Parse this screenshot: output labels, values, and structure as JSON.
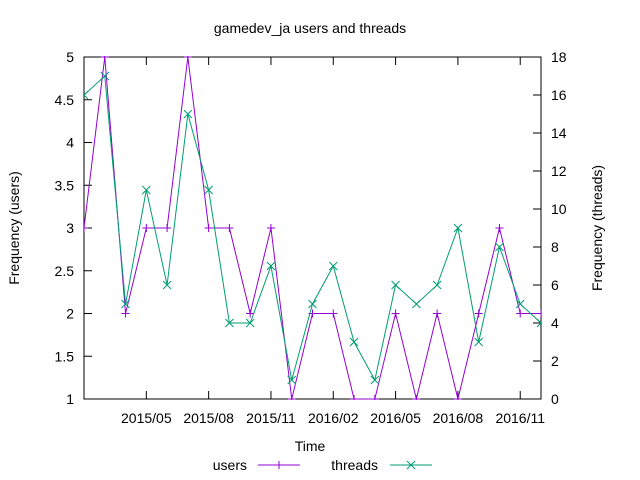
{
  "chart_data": {
    "type": "line",
    "title": "gamedev_ja users and threads",
    "xlabel": "Time",
    "ylabel_left": "Frequency (users)",
    "ylabel_right": "Frequency (threads)",
    "x_tick_labels": [
      "2015/05",
      "2015/08",
      "2015/11",
      "2016/02",
      "2016/05",
      "2016/08",
      "2016/11"
    ],
    "y_left_ticks": [
      "1",
      "1.5",
      "2",
      "2.5",
      "3",
      "3.5",
      "4",
      "4.5",
      "5"
    ],
    "y_right_ticks": [
      "0",
      "2",
      "4",
      "6",
      "8",
      "10",
      "12",
      "14",
      "16",
      "18"
    ],
    "ylim_left": [
      1,
      5
    ],
    "ylim_right": [
      0,
      18
    ],
    "x": [
      "2015-02",
      "2015-03",
      "2015-04",
      "2015-05",
      "2015-06",
      "2015-07",
      "2015-08",
      "2015-09",
      "2015-10",
      "2015-11",
      "2015-12",
      "2016-01",
      "2016-02",
      "2016-03",
      "2016-04",
      "2016-05",
      "2016-06",
      "2016-07",
      "2016-08",
      "2016-09",
      "2016-10",
      "2016-11",
      "2016-12"
    ],
    "series": [
      {
        "name": "users",
        "axis": "left",
        "color": "#9400d3",
        "marker": "plus",
        "values": [
          3,
          5,
          2,
          3,
          3,
          5,
          3,
          3,
          2,
          3,
          1,
          2,
          2,
          1,
          1,
          2,
          1,
          2,
          1,
          2,
          3,
          2,
          2
        ]
      },
      {
        "name": "threads",
        "axis": "right",
        "color": "#009e73",
        "marker": "cross",
        "values": [
          16,
          17,
          5,
          11,
          6,
          15,
          11,
          4,
          4,
          7,
          1,
          5,
          7,
          3,
          1,
          6,
          5,
          6,
          9,
          3,
          8,
          5,
          4
        ]
      }
    ],
    "legend": {
      "placement": "bottom-center"
    },
    "grid": false
  }
}
